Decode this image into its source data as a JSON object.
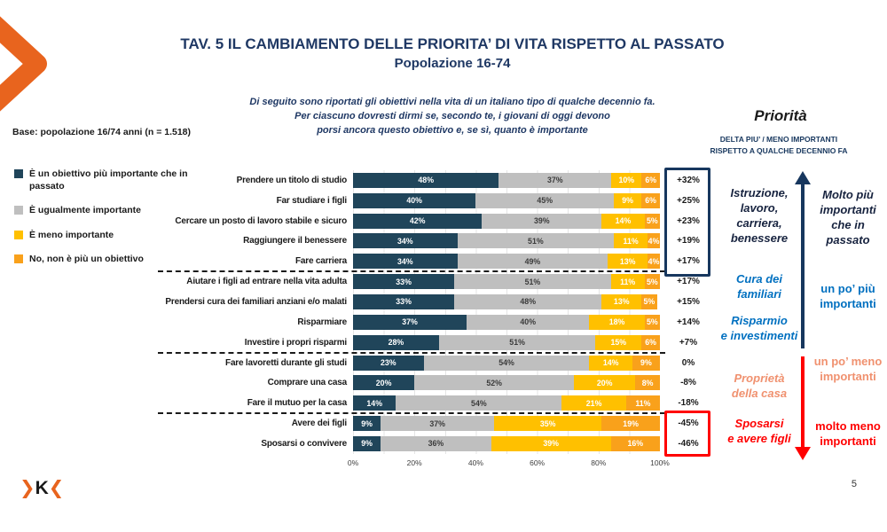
{
  "page": {
    "title": "TAV. 5 IL CAMBIAMENTO DELLE PRIORITA’ DI VITA RISPETTO AL PASSATO",
    "subtitle": "Popolazione 16-74",
    "description": "Di seguito sono riportati gli obiettivi nella vita di un italiano tipo di qualche decennio fa.\nPer ciascuno dovresti dirmi se, secondo te, i giovani di oggi devono\nporsi ancora questo obiettivo e, se sì, quanto è importante",
    "base_note": "Base: popolazione 16/74 anni (n = 1.518)",
    "page_number": "5",
    "logo": {
      "chevron_left": "❯",
      "letter": "K",
      "chevron_right": "❮"
    }
  },
  "theme": {
    "bar_navy": "#20455A",
    "bar_gray": "#BFBFBF",
    "bar_yellow": "#FFC000",
    "bar_orange": "#F9A11B",
    "title_navy": "#1F3864",
    "accent_blue": "#0070C0",
    "accent_salmon": "#F0916F",
    "accent_red": "#FF0000",
    "arrow_navy": "#17375E",
    "logo_orange": "#E8641E"
  },
  "legend": {
    "items": [
      {
        "label": "È un obiettivo più importante che in passato",
        "color": "#20455A"
      },
      {
        "label": "È ugualmente importante",
        "color": "#BFBFBF"
      },
      {
        "label": "È meno importante",
        "color": "#FFC000"
      },
      {
        "label": "No, non è più un obiettivo",
        "color": "#F9A11B"
      }
    ]
  },
  "right_panel": {
    "heading": "Priorità",
    "delta_header": "DELTA PIU’ / MENO  IMPORTANTI\nRISPETTO A QUALCHE DECENNIO FA",
    "group_labels": [
      {
        "id": "istruzione",
        "text": "Istruzione,\nlavoro,\ncarriera,\nbenessere",
        "color": "#17233F"
      },
      {
        "id": "cura",
        "text": "Cura dei\nfamiliari",
        "color": "#0070C0"
      },
      {
        "id": "risparmio",
        "text": "Risparmio\ne investimenti",
        "color": "#0070C0"
      },
      {
        "id": "proprieta",
        "text": "Proprietà\ndella casa",
        "color": "#F0916F"
      },
      {
        "id": "sposarsi",
        "text": "Sposarsi\ne avere figli",
        "color": "#FF0000"
      }
    ],
    "direction_labels": [
      {
        "id": "molto-piu",
        "text": "Molto più\nimportanti\nche in\npassato",
        "color": "#17233F"
      },
      {
        "id": "po-piu",
        "text": "un po’  più\nimportanti",
        "color": "#0070C0"
      },
      {
        "id": "po-meno",
        "text": "un po’ meno\nimportanti",
        "color": "#F0916F"
      },
      {
        "id": "molto-meno",
        "text": "molto meno\nimportanti",
        "color": "#FF0000"
      }
    ]
  },
  "chart_data": {
    "type": "bar",
    "orientation": "horizontal",
    "stacked": true,
    "title": "TAV. 5 IL CAMBIAMENTO DELLE PRIORITA’ DI VITA RISPETTO AL PASSATO — Popolazione 16-74",
    "series_names": [
      "È un obiettivo più importante che in passato",
      "È ugualmente importante",
      "È meno importante",
      "No, non è più un obiettivo"
    ],
    "palette": [
      "#20455A",
      "#BFBFBF",
      "#FFC000",
      "#F9A11B"
    ],
    "x_axis": {
      "range": [
        0,
        100
      ],
      "ticks": [
        "0%",
        "20%",
        "40%",
        "60%",
        "80%",
        "100%"
      ]
    },
    "groups": [
      5,
      4,
      3,
      2
    ],
    "rows": [
      {
        "label": "Prendere un titolo di studio",
        "values": [
          48,
          37,
          10,
          6
        ],
        "delta": "+32%"
      },
      {
        "label": "Far studiare i figli",
        "values": [
          40,
          45,
          9,
          6
        ],
        "delta": "+25%"
      },
      {
        "label": "Cercare un posto di lavoro stabile e sicuro",
        "values": [
          42,
          39,
          14,
          5
        ],
        "delta": "+23%"
      },
      {
        "label": "Raggiungere il benessere",
        "values": [
          34,
          51,
          11,
          4
        ],
        "delta": "+19%"
      },
      {
        "label": "Fare carriera",
        "values": [
          34,
          49,
          13,
          4
        ],
        "delta": "+17%"
      },
      {
        "label": "Aiutare i figli ad entrare nella vita adulta",
        "values": [
          33,
          51,
          11,
          5
        ],
        "delta": "+17%"
      },
      {
        "label": "Prendersi cura dei familiari anziani e/o malati",
        "values": [
          33,
          48,
          13,
          5
        ],
        "delta": "+15%"
      },
      {
        "label": "Risparmiare",
        "values": [
          37,
          40,
          18,
          5
        ],
        "delta": "+14%"
      },
      {
        "label": "Investire i propri risparmi",
        "values": [
          28,
          51,
          15,
          6
        ],
        "delta": "+7%"
      },
      {
        "label": "Fare lavoretti durante gli studi",
        "values": [
          23,
          54,
          14,
          9
        ],
        "delta": "0%"
      },
      {
        "label": "Comprare una casa",
        "values": [
          20,
          52,
          20,
          8
        ],
        "delta": "-8%"
      },
      {
        "label": "Fare il mutuo per la casa",
        "values": [
          14,
          54,
          21,
          11
        ],
        "delta": "-18%"
      },
      {
        "label": "Avere dei figli",
        "values": [
          9,
          37,
          35,
          19
        ],
        "delta": "-45%"
      },
      {
        "label": "Sposarsi o convivere",
        "values": [
          9,
          36,
          39,
          16
        ],
        "delta": "-46%"
      }
    ]
  }
}
